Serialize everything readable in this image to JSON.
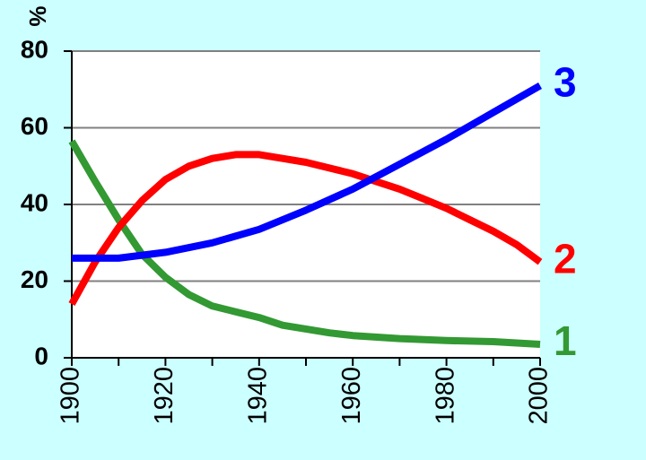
{
  "chart_data": {
    "type": "line",
    "title": "",
    "xlabel": "",
    "ylabel": "%",
    "xlim": [
      1900,
      2000
    ],
    "ylim": [
      0,
      80
    ],
    "x_ticks": [
      "1900",
      "1920",
      "1940",
      "1960",
      "1980",
      "2000"
    ],
    "y_ticks": [
      "0",
      "20",
      "40",
      "60",
      "80"
    ],
    "grid": "horizontal",
    "legend": "end-of-line labels, right",
    "colors": {
      "background": "#ccffff",
      "plot_area": "#ffffff",
      "grid": "#808080"
    },
    "series": [
      {
        "name": "1",
        "color": "#339933",
        "x": [
          1900,
          1905,
          1910,
          1915,
          1920,
          1925,
          1930,
          1935,
          1940,
          1945,
          1950,
          1955,
          1960,
          1970,
          1980,
          1990,
          2000
        ],
        "values": [
          56.5,
          46,
          36,
          27,
          21,
          16.5,
          13.5,
          12,
          10.5,
          8.5,
          7.5,
          6.5,
          5.8,
          5,
          4.5,
          4.2,
          3.5
        ]
      },
      {
        "name": "2",
        "color": "#ff0000",
        "x": [
          1900,
          1905,
          1910,
          1915,
          1920,
          1925,
          1930,
          1935,
          1940,
          1945,
          1950,
          1955,
          1960,
          1965,
          1970,
          1975,
          1980,
          1985,
          1990,
          1995,
          2000
        ],
        "values": [
          14,
          25,
          34,
          41,
          46.5,
          50,
          52,
          53,
          53,
          52,
          51,
          49.5,
          48,
          46,
          44,
          41.5,
          39,
          36,
          33,
          29.5,
          25
        ]
      },
      {
        "name": "3",
        "color": "#0000ff",
        "x": [
          1900,
          1910,
          1920,
          1930,
          1940,
          1950,
          1960,
          1970,
          1980,
          1990,
          2000
        ],
        "values": [
          26,
          26,
          27.5,
          30,
          33.5,
          38.5,
          44,
          50.5,
          57,
          64,
          71
        ]
      }
    ]
  }
}
